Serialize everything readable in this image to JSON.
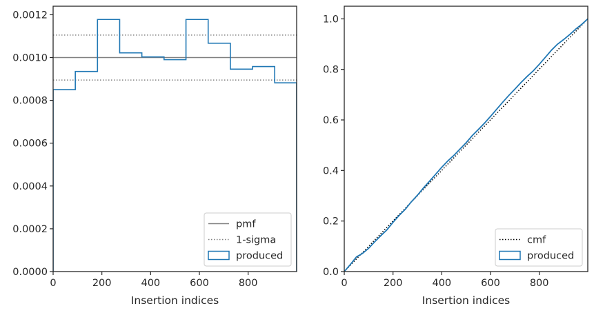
{
  "chart_data": [
    {
      "type": "step",
      "title": "",
      "xlabel": "Insertion indices",
      "ylabel": "",
      "xlim": [
        0,
        999
      ],
      "ylim": [
        0,
        0.00124
      ],
      "xticks": [
        0,
        200,
        400,
        600,
        800
      ],
      "xtick_labels": [
        "0",
        "200",
        "400",
        "600",
        "800"
      ],
      "yticks": [
        0,
        0.0002,
        0.0004,
        0.0006,
        0.0008,
        0.001,
        0.0012
      ],
      "ytick_labels": [
        "0.0000",
        "0.0002",
        "0.0004",
        "0.0006",
        "0.0008",
        "0.0010",
        "0.0012"
      ],
      "grid": false,
      "legend_position": "lower-right",
      "series": [
        {
          "name": "produced",
          "color": "#1f77b4",
          "bin_edges": [
            0,
            91,
            182,
            273,
            364,
            455,
            545,
            636,
            727,
            818,
            909,
            999
          ],
          "values": [
            0.00085,
            0.000935,
            0.001178,
            0.001022,
            0.001003,
            0.00099,
            0.001178,
            0.001067,
            0.000946,
            0.000958,
            0.000882
          ]
        }
      ],
      "reference_lines": [
        {
          "name": "pmf",
          "value": 0.001,
          "style": "solid",
          "color": "#808080"
        },
        {
          "name": "1-sigma",
          "values": [
            0.001105,
            0.000895
          ],
          "style": "dotted",
          "color": "#808080"
        }
      ],
      "legend": [
        {
          "label": "pmf",
          "kind": "solid"
        },
        {
          "label": "1-sigma",
          "kind": "dotted"
        },
        {
          "label": "produced",
          "kind": "patch"
        }
      ]
    },
    {
      "type": "line",
      "title": "",
      "xlabel": "Insertion indices",
      "ylabel": "",
      "xlim": [
        0,
        999
      ],
      "ylim": [
        0,
        1.05
      ],
      "xticks": [
        0,
        200,
        400,
        600,
        800
      ],
      "xtick_labels": [
        "0",
        "200",
        "400",
        "600",
        "800"
      ],
      "yticks": [
        0,
        0.2,
        0.4,
        0.6,
        0.8,
        1.0
      ],
      "ytick_labels": [
        "0.0",
        "0.2",
        "0.4",
        "0.6",
        "0.8",
        "1.0"
      ],
      "grid": false,
      "legend_position": "lower-right",
      "series": [
        {
          "name": "cmf",
          "color": "#000000",
          "style": "dotted",
          "x": [
            0,
            999
          ],
          "y": [
            0,
            1.0
          ]
        },
        {
          "name": "produced",
          "color": "#1f77b4",
          "style": "solid",
          "x": [
            0,
            25,
            50,
            75,
            100,
            125,
            150,
            175,
            200,
            225,
            250,
            275,
            300,
            325,
            350,
            375,
            400,
            425,
            450,
            475,
            500,
            525,
            550,
            575,
            600,
            625,
            650,
            675,
            700,
            725,
            750,
            775,
            800,
            825,
            850,
            875,
            900,
            925,
            950,
            975,
            999
          ],
          "y": [
            0,
            0.028,
            0.058,
            0.072,
            0.092,
            0.118,
            0.142,
            0.165,
            0.195,
            0.222,
            0.246,
            0.276,
            0.302,
            0.331,
            0.358,
            0.385,
            0.413,
            0.438,
            0.46,
            0.485,
            0.51,
            0.538,
            0.562,
            0.587,
            0.614,
            0.642,
            0.67,
            0.697,
            0.722,
            0.748,
            0.772,
            0.794,
            0.82,
            0.848,
            0.876,
            0.9,
            0.918,
            0.938,
            0.96,
            0.979,
            1.0
          ]
        }
      ],
      "legend": [
        {
          "label": "cmf",
          "kind": "dotted-black"
        },
        {
          "label": "produced",
          "kind": "patch"
        }
      ]
    }
  ]
}
